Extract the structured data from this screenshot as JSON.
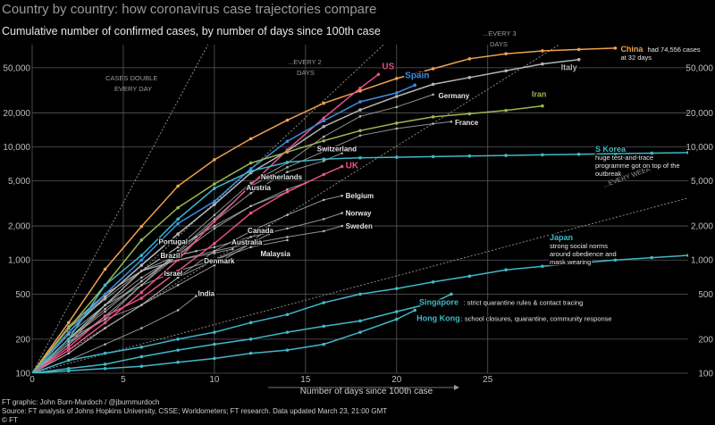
{
  "header": {
    "title": "Country by country: how coronavirus case trajectories compare",
    "subtitle": "Cumulative number of confirmed cases, by number of days since 100th case"
  },
  "footer": {
    "credit": "FT graphic: John Burn-Murdoch / @jburnmurdoch",
    "source": "Source: FT analysis of Johns Hopkins University, CSSE; Worldometers; FT research. Data updated March 23, 21:00 GMT",
    "copyright": "© FT"
  },
  "colors": {
    "background": "#000000",
    "grid": "#5a5a5a",
    "gray_lines": "#9a9a9a",
    "china": "#f0a050",
    "us": "#e8508a",
    "spain": "#3a8fe0",
    "iran": "#9ab850",
    "uk": "#e8508a",
    "korea": "#40b8c8",
    "italy": "#b5b5b5",
    "asia": "#40b8c8",
    "label": "#e6e6e6"
  },
  "chart_data": {
    "type": "line",
    "title": "Country by country: how coronavirus case trajectories compare",
    "subtitle": "Cumulative number of confirmed cases, by number of days since 100th case",
    "xlabel": "Number of days since 100th case",
    "ylabel": "",
    "xlim": [
      0,
      36
    ],
    "ylim": [
      100,
      80000
    ],
    "y_scale": "log",
    "x_ticks": [
      0,
      5,
      10,
      15,
      20,
      25
    ],
    "y_ticks": [
      100,
      200,
      500,
      1000,
      2000,
      5000,
      10000,
      20000,
      50000
    ],
    "y_tick_labels": [
      "100",
      "200",
      "500",
      "1,000",
      "2,000",
      "5,000",
      "10,000",
      "20,000",
      "50,000"
    ],
    "grid": true,
    "doubling_guides": [
      {
        "label": "CASES DOUBLE EVERY DAY",
        "days": 1
      },
      {
        "label": "...EVERY 2 DAYS",
        "days": 2
      },
      {
        "label": "...EVERY 3 DAYS",
        "days": 3
      },
      {
        "label": "...EVERY WEEK",
        "days": 7
      }
    ],
    "series": [
      {
        "name": "China",
        "label": "China",
        "note": "had 74,556 cases at 32 days",
        "color": "#f0a050",
        "highlight": true,
        "x": [
          0,
          2,
          4,
          6,
          8,
          10,
          12,
          14,
          16,
          18,
          20,
          22,
          24,
          26,
          28,
          30,
          32
        ],
        "y": [
          100,
          280,
          830,
          1980,
          4500,
          7700,
          11800,
          17200,
          24300,
          31200,
          40200,
          49000,
          60000,
          66500,
          70500,
          72500,
          74556
        ]
      },
      {
        "name": "Italy",
        "label": "Italy",
        "color": "#b5b5b5",
        "highlight": true,
        "x": [
          0,
          2,
          4,
          6,
          8,
          10,
          12,
          14,
          16,
          18,
          20,
          22,
          24,
          26,
          28,
          30
        ],
        "y": [
          100,
          230,
          470,
          900,
          1700,
          3100,
          5900,
          9200,
          15100,
          21200,
          27900,
          35700,
          41000,
          47000,
          54000,
          59100
        ]
      },
      {
        "name": "US",
        "label": "US",
        "color": "#e8508a",
        "highlight": true,
        "x": [
          0,
          2,
          4,
          6,
          8,
          10,
          12,
          14,
          16,
          18,
          19
        ],
        "y": [
          100,
          160,
          280,
          520,
          1000,
          2200,
          4600,
          9400,
          18000,
          33000,
          43700
        ]
      },
      {
        "name": "Spain",
        "label": "Spain",
        "color": "#3a8fe0",
        "highlight": true,
        "x": [
          0,
          2,
          4,
          6,
          8,
          10,
          12,
          14,
          16,
          18,
          20,
          21
        ],
        "y": [
          100,
          230,
          500,
          1000,
          2100,
          3300,
          6400,
          11200,
          17000,
          25000,
          30000,
          35100
        ]
      },
      {
        "name": "Germany",
        "label": "Germany",
        "color": "#b5b5b5",
        "highlight": false,
        "x": [
          0,
          2,
          4,
          6,
          8,
          10,
          12,
          14,
          16,
          18,
          20,
          22
        ],
        "y": [
          100,
          200,
          400,
          800,
          1300,
          2500,
          4800,
          7200,
          12300,
          18600,
          22500,
          29000
        ]
      },
      {
        "name": "Iran",
        "label": "Iran",
        "color": "#9ab850",
        "highlight": true,
        "x": [
          0,
          2,
          4,
          6,
          8,
          10,
          12,
          14,
          16,
          18,
          20,
          22,
          24,
          26,
          28
        ],
        "y": [
          100,
          250,
          600,
          1500,
          2900,
          4700,
          7200,
          9000,
          11300,
          13900,
          16200,
          18400,
          19600,
          21000,
          23000
        ]
      },
      {
        "name": "France",
        "label": "France",
        "color": "#b5b5b5",
        "highlight": false,
        "x": [
          0,
          2,
          4,
          6,
          8,
          10,
          12,
          14,
          16,
          18,
          20,
          22,
          23
        ],
        "y": [
          100,
          190,
          300,
          600,
          1200,
          2300,
          4500,
          6600,
          9100,
          12600,
          14500,
          16000,
          16700
        ]
      },
      {
        "name": "Switzerland",
        "label": "Switzerland",
        "color": "#b5b5b5",
        "highlight": false,
        "x": [
          0,
          2,
          4,
          6,
          8,
          10,
          12,
          14,
          16,
          17
        ],
        "y": [
          100,
          200,
          370,
          650,
          1150,
          2200,
          3900,
          6000,
          7500,
          8800
        ]
      },
      {
        "name": "UK",
        "label": "UK",
        "color": "#e8508a",
        "highlight": true,
        "x": [
          0,
          2,
          4,
          6,
          8,
          10,
          12,
          14,
          16,
          17
        ],
        "y": [
          100,
          170,
          320,
          460,
          800,
          1400,
          2600,
          4000,
          5700,
          6700
        ]
      },
      {
        "name": "Netherlands",
        "label": "Netherlands",
        "color": "#b5b5b5",
        "highlight": false,
        "x": [
          0,
          2,
          4,
          6,
          8,
          10,
          12,
          14,
          15
        ],
        "y": [
          100,
          180,
          320,
          600,
          1100,
          1900,
          3000,
          4200,
          4800
        ]
      },
      {
        "name": "Austria",
        "label": "Austria",
        "color": "#b5b5b5",
        "highlight": false,
        "x": [
          0,
          2,
          4,
          6,
          8,
          10,
          12,
          14
        ],
        "y": [
          100,
          180,
          400,
          800,
          1300,
          2000,
          3000,
          4000
        ]
      },
      {
        "name": "Belgium",
        "label": "Belgium",
        "color": "#b5b5b5",
        "highlight": false,
        "x": [
          0,
          2,
          4,
          6,
          8,
          10,
          12,
          14,
          16,
          17
        ],
        "y": [
          100,
          200,
          300,
          400,
          700,
          1200,
          1800,
          2500,
          3400,
          3700
        ]
      },
      {
        "name": "Norway",
        "label": "Norway",
        "color": "#b5b5b5",
        "highlight": false,
        "x": [
          0,
          2,
          4,
          6,
          8,
          10,
          12,
          14,
          16,
          17
        ],
        "y": [
          100,
          250,
          500,
          800,
          1100,
          1300,
          1600,
          1900,
          2300,
          2600
        ]
      },
      {
        "name": "Sweden",
        "label": "Sweden",
        "color": "#b5b5b5",
        "highlight": false,
        "x": [
          0,
          2,
          4,
          6,
          8,
          10,
          12,
          14,
          16,
          17
        ],
        "y": [
          100,
          220,
          400,
          800,
          1000,
          1200,
          1400,
          1600,
          1800,
          2000
        ]
      },
      {
        "name": "Portugal",
        "label": "Portugal",
        "color": "#b5b5b5",
        "highlight": false,
        "x": [
          0,
          2,
          4,
          6,
          8,
          9
        ],
        "y": [
          100,
          250,
          450,
          800,
          1300,
          1600
        ]
      },
      {
        "name": "Brazil",
        "label": "Brazil",
        "color": "#b5b5b5",
        "highlight": false,
        "x": [
          0,
          2,
          4,
          6,
          8,
          9
        ],
        "y": [
          100,
          200,
          350,
          650,
          1100,
          1500
        ]
      },
      {
        "name": "Israel",
        "label": "Israel",
        "color": "#b5b5b5",
        "highlight": false,
        "x": [
          0,
          2,
          4,
          6,
          8,
          9
        ],
        "y": [
          100,
          200,
          400,
          700,
          1100,
          1200
        ]
      },
      {
        "name": "Canada",
        "label": "Canada",
        "color": "#b5b5b5",
        "highlight": false,
        "x": [
          0,
          2,
          4,
          6,
          8,
          10,
          12,
          13
        ],
        "y": [
          100,
          150,
          250,
          400,
          600,
          900,
          1400,
          2000
        ]
      },
      {
        "name": "Australia",
        "label": "Australia",
        "color": "#b5b5b5",
        "highlight": false,
        "x": [
          0,
          2,
          4,
          6,
          8,
          10,
          12,
          13
        ],
        "y": [
          100,
          150,
          250,
          400,
          700,
          1000,
          1400,
          1700
        ]
      },
      {
        "name": "Malaysia",
        "label": "Malaysia",
        "color": "#b5b5b5",
        "highlight": false,
        "x": [
          0,
          2,
          4,
          6,
          8,
          10,
          12,
          14
        ],
        "y": [
          100,
          200,
          400,
          600,
          800,
          1000,
          1300,
          1500
        ]
      },
      {
        "name": "Denmark",
        "label": "Denmark",
        "color": "#b5b5b5",
        "highlight": false,
        "x": [
          0,
          2,
          4,
          6,
          8,
          10,
          11
        ],
        "y": [
          100,
          260,
          500,
          800,
          1000,
          1150,
          1250
        ]
      },
      {
        "name": "India",
        "label": "India",
        "color": "#b5b5b5",
        "highlight": false,
        "x": [
          0,
          2,
          4,
          6,
          8,
          9
        ],
        "y": [
          100,
          130,
          180,
          250,
          360,
          480
        ]
      },
      {
        "name": "S Korea",
        "label": "S Korea",
        "note": "huge test-and-trace programme got on top of the outbreak",
        "color": "#40b8c8",
        "highlight": true,
        "x": [
          0,
          2,
          4,
          6,
          8,
          10,
          12,
          14,
          16,
          18,
          20,
          22,
          24,
          26,
          28,
          30,
          32,
          34,
          36
        ],
        "y": [
          100,
          200,
          600,
          1100,
          2300,
          4300,
          6100,
          7300,
          7800,
          8000,
          8100,
          8200,
          8300,
          8400,
          8500,
          8600,
          8700,
          8800,
          8900
        ]
      },
      {
        "name": "Japan",
        "label": "Japan",
        "note": "strong social norms around obedience and mask wearing",
        "color": "#40b8c8",
        "highlight": true,
        "x": [
          0,
          2,
          4,
          6,
          8,
          10,
          12,
          14,
          16,
          18,
          20,
          22,
          24,
          26,
          28,
          30,
          32,
          34,
          36
        ],
        "y": [
          100,
          130,
          150,
          170,
          200,
          230,
          280,
          330,
          420,
          500,
          560,
          640,
          720,
          820,
          880,
          940,
          1000,
          1050,
          1100
        ]
      },
      {
        "name": "Singapore",
        "label": "Singapore",
        "note": "strict quarantine rules & contact tracing",
        "color": "#40b8c8",
        "highlight": true,
        "x": [
          0,
          2,
          4,
          6,
          8,
          10,
          12,
          14,
          16,
          18,
          20,
          22,
          23
        ],
        "y": [
          100,
          110,
          120,
          140,
          160,
          180,
          200,
          230,
          260,
          290,
          350,
          420,
          500
        ]
      },
      {
        "name": "Hong Kong",
        "label": "Hong Kong",
        "note": "school closures, quarantine, community response",
        "color": "#40b8c8",
        "highlight": true,
        "x": [
          0,
          2,
          4,
          6,
          8,
          10,
          12,
          14,
          16,
          18,
          20,
          21
        ],
        "y": [
          100,
          105,
          110,
          115,
          125,
          135,
          150,
          160,
          180,
          230,
          300,
          360
        ]
      }
    ]
  }
}
